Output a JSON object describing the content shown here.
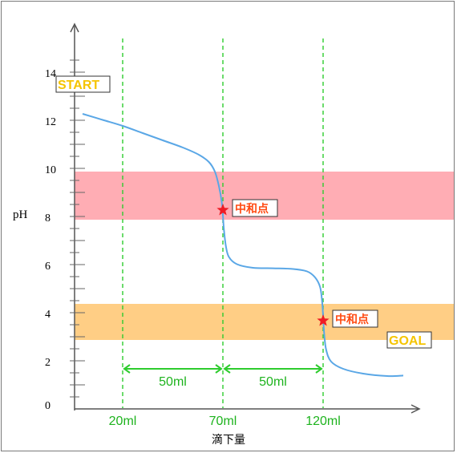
{
  "chart_data": {
    "type": "line",
    "ylabel": "pH",
    "xlabel": "滴下量",
    "ylim": [
      0,
      14
    ],
    "y_ticks": [
      0,
      2,
      4,
      6,
      8,
      10,
      12,
      14
    ],
    "x_ticks": [
      "20ml",
      "70ml",
      "120ml"
    ],
    "x_tick_values": [
      20,
      70,
      120
    ],
    "xlim": [
      -4,
      170
    ],
    "bands": [
      {
        "from": 8.0,
        "to": 10.0,
        "color": "#ffadb4"
      },
      {
        "from": 3.0,
        "to": 4.5,
        "color": "#ffce85"
      }
    ],
    "series": [
      {
        "color": "#5aa7e6",
        "points": [
          [
            0,
            12.4
          ],
          [
            10,
            12.15
          ],
          [
            20,
            11.9
          ],
          [
            30,
            11.6
          ],
          [
            40,
            11.3
          ],
          [
            50,
            11.0
          ],
          [
            58,
            10.7
          ],
          [
            63,
            10.4
          ],
          [
            66,
            10.0
          ],
          [
            68,
            9.4
          ],
          [
            69.5,
            8.7
          ],
          [
            70,
            8.2
          ],
          [
            70.5,
            7.6
          ],
          [
            71.5,
            6.9
          ],
          [
            73,
            6.45
          ],
          [
            77,
            6.15
          ],
          [
            85,
            6.0
          ],
          [
            95,
            5.98
          ],
          [
            105,
            5.95
          ],
          [
            112,
            5.85
          ],
          [
            116,
            5.6
          ],
          [
            118.5,
            5.2
          ],
          [
            119.5,
            4.6
          ],
          [
            120,
            4.0
          ],
          [
            120.5,
            3.3
          ],
          [
            121.5,
            2.6
          ],
          [
            124,
            2.1
          ],
          [
            130,
            1.8
          ],
          [
            140,
            1.6
          ],
          [
            152,
            1.5
          ],
          [
            160,
            1.52
          ]
        ]
      }
    ],
    "annotations": {
      "start": {
        "text": "START",
        "x": 0,
        "y": 12.4
      },
      "goal": {
        "text": "GOAL",
        "x": 160,
        "y": 1.52
      },
      "neutralization_points": [
        {
          "text": "中和点",
          "x": 70,
          "y": 8.4
        },
        {
          "text": "中和点",
          "x": 120,
          "y": 3.8
        }
      ],
      "intervals": [
        {
          "from": 20,
          "to": 70,
          "text": "50ml"
        },
        {
          "from": 70,
          "to": 120,
          "text": "50ml"
        }
      ]
    },
    "colors": {
      "guide": "#2ecc2e",
      "axis": "#555555",
      "star": "#ee1c25"
    }
  }
}
